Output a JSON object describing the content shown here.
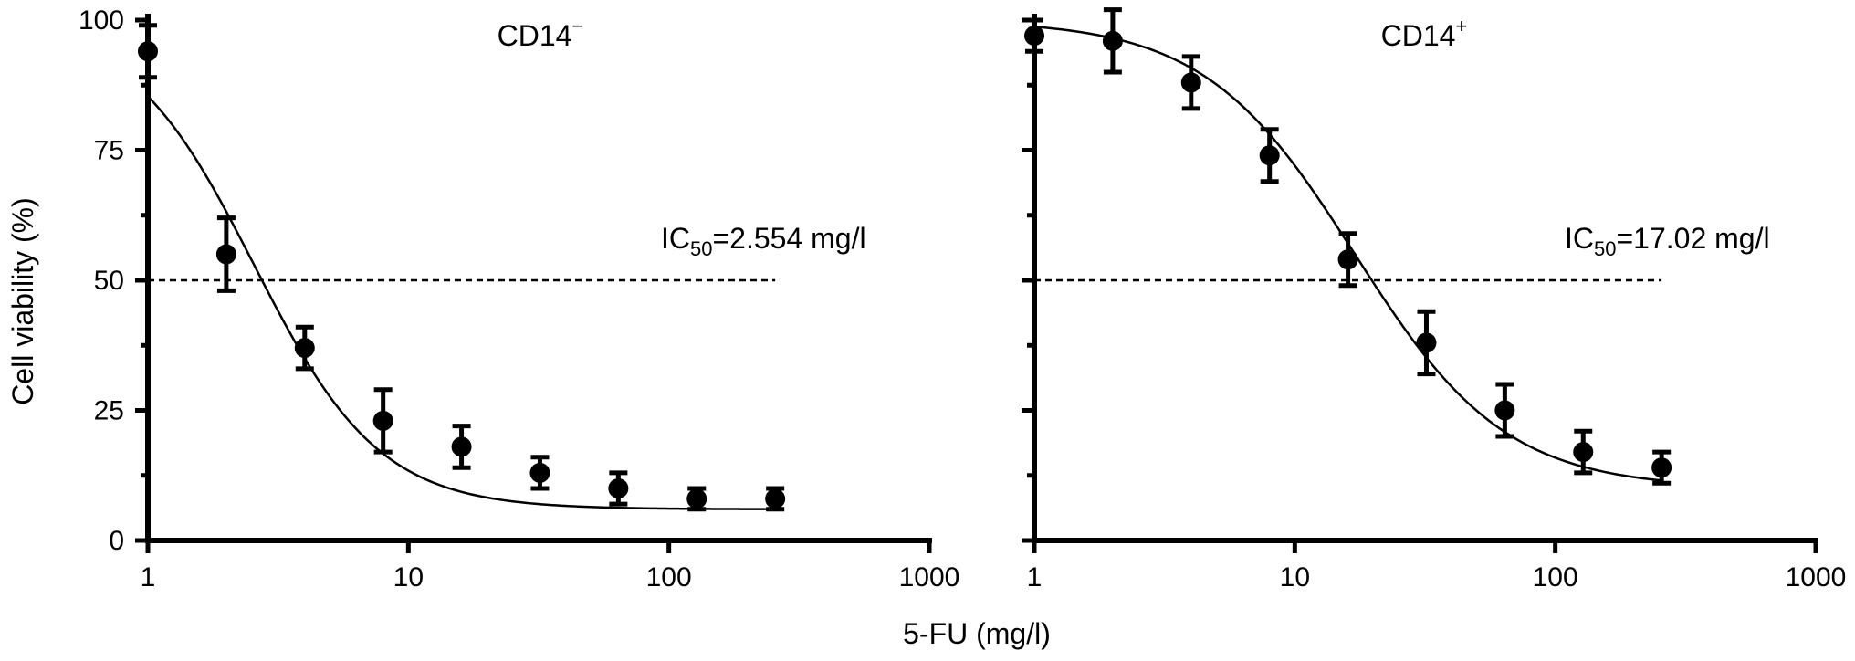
{
  "chart_data": [
    {
      "type": "line",
      "title_main": "CD14",
      "title_sup": "−",
      "xscale": "log",
      "xlim": [
        1,
        1000
      ],
      "ylim": [
        0,
        100
      ],
      "xticks": [
        1,
        10,
        100,
        1000
      ],
      "xtick_labels": [
        "1",
        "10",
        "100",
        "1000"
      ],
      "yticks": [
        0,
        25,
        50,
        75,
        100
      ],
      "ytick_labels": [
        "0",
        "25",
        "50",
        "75",
        "100"
      ],
      "reference_line": {
        "y": 50,
        "x_range": [
          1,
          256
        ],
        "style": "dashed"
      },
      "annotation": {
        "prefix": "IC",
        "sub": "50",
        "suffix": "=2.554 mg/l"
      },
      "ic50": 2.554,
      "hill_slope": 1.8,
      "bottom_plateau": 6,
      "points": [
        {
          "x": 1,
          "y": 94,
          "err": 5
        },
        {
          "x": 2,
          "y": 55,
          "err": 7
        },
        {
          "x": 4,
          "y": 37,
          "err": 4
        },
        {
          "x": 8,
          "y": 23,
          "err": 6
        },
        {
          "x": 16,
          "y": 18,
          "err": 4
        },
        {
          "x": 32,
          "y": 13,
          "err": 3
        },
        {
          "x": 64,
          "y": 10,
          "err": 3
        },
        {
          "x": 128,
          "y": 8,
          "err": 2
        },
        {
          "x": 256,
          "y": 8,
          "err": 2
        }
      ]
    },
    {
      "type": "line",
      "title_main": "CD14",
      "title_sup": "+",
      "xscale": "log",
      "xlim": [
        1,
        1000
      ],
      "ylim": [
        0,
        100
      ],
      "xticks": [
        1,
        10,
        100,
        1000
      ],
      "xtick_labels": [
        "1",
        "10",
        "100",
        "1000"
      ],
      "yticks": [
        0,
        25,
        50,
        75,
        100
      ],
      "ytick_labels": [
        "0",
        "25",
        "50",
        "75",
        "100"
      ],
      "reference_line": {
        "y": 50,
        "x_range": [
          1,
          256
        ],
        "style": "dashed"
      },
      "annotation": {
        "prefix": "IC",
        "sub": "50",
        "suffix": "=17.02 mg/l"
      },
      "ic50": 17.02,
      "hill_slope": 1.5,
      "bottom_plateau": 10,
      "points": [
        {
          "x": 1,
          "y": 97,
          "err": 3
        },
        {
          "x": 2,
          "y": 96,
          "err": 6
        },
        {
          "x": 4,
          "y": 88,
          "err": 5
        },
        {
          "x": 8,
          "y": 74,
          "err": 5
        },
        {
          "x": 16,
          "y": 54,
          "err": 5
        },
        {
          "x": 32,
          "y": 38,
          "err": 6
        },
        {
          "x": 64,
          "y": 25,
          "err": 5
        },
        {
          "x": 128,
          "y": 17,
          "err": 4
        },
        {
          "x": 256,
          "y": 14,
          "err": 3
        }
      ]
    }
  ],
  "shared_labels": {
    "xlabel": "5-FU (mg/l)",
    "ylabel": "Cell viability (%)"
  }
}
